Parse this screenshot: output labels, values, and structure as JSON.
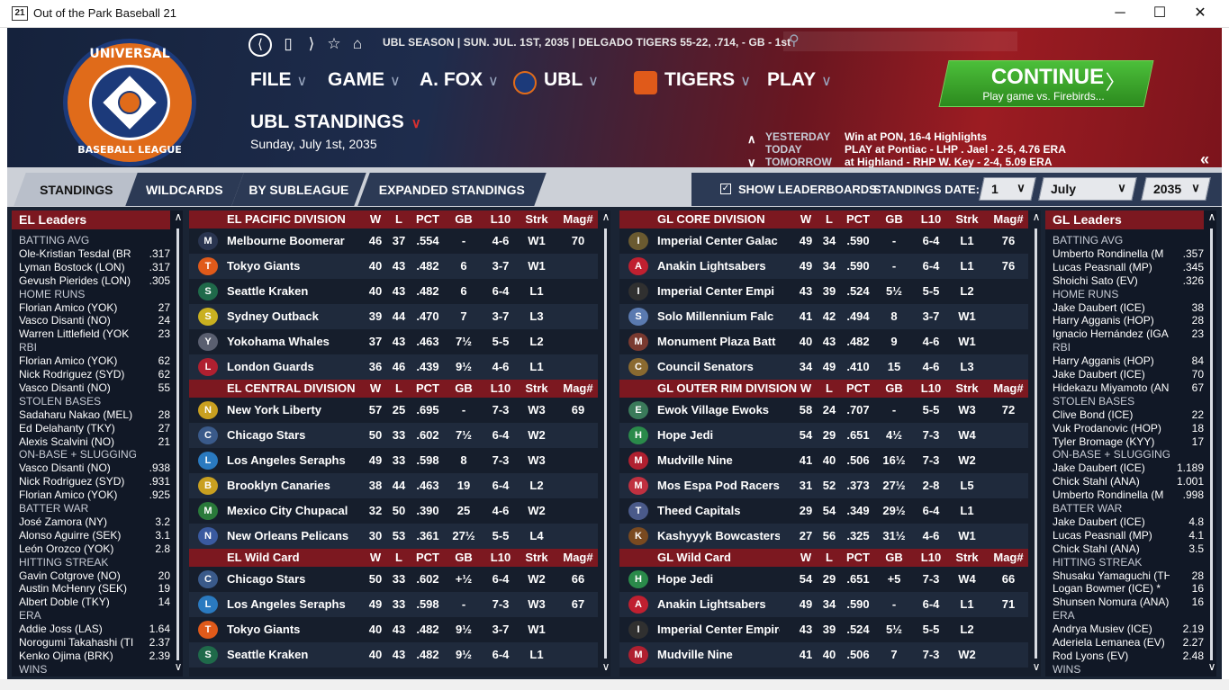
{
  "window": {
    "title": "Out of the Park Baseball 21",
    "icon_text": "21",
    "minimize": "─",
    "maximize": "☐",
    "close": "✕"
  },
  "logo": {
    "top_text": "UNIVERSAL",
    "bottom_text": "BASEBALL LEAGUE"
  },
  "nav": {
    "back": "⟨",
    "bookmark": "▯",
    "forward": "⟩",
    "star": "☆",
    "home": "⌂"
  },
  "status_line": "UBL SEASON | SUN. JUL. 1ST, 2035 | DELGADO TIGERS  55-22, .714, - GB - 1st",
  "search": {
    "icon": "search-icon"
  },
  "menu": [
    {
      "label": "FILE"
    },
    {
      "label": "GAME"
    },
    {
      "label": "A. FOX"
    },
    {
      "label": "UBL"
    },
    {
      "label": "TIGERS"
    },
    {
      "label": "PLAY"
    }
  ],
  "chevron": "∨",
  "page": {
    "title": "UBL STANDINGS",
    "date": "Sunday, July 1st, 2035"
  },
  "continue": {
    "label": "CONTINUE",
    "sub": "Play game vs. Firebirds...",
    "arrow": "〉"
  },
  "schedule": {
    "yesterday": {
      "label": "YESTERDAY",
      "value": "Win at PON, 16-4    Highlights"
    },
    "today": {
      "label": "TODAY",
      "value": "PLAY at Pontiac - LHP . Jael - 2-5, 4.76 ERA"
    },
    "tomorrow": {
      "label": "TOMORROW",
      "value": "at Highland - RHP W. Key - 2-4, 5.09 ERA"
    },
    "up": "∧",
    "down": "∨"
  },
  "collapse": "«",
  "tabs": [
    {
      "label": "STANDINGS"
    },
    {
      "label": "WILDCARDS"
    },
    {
      "label": "BY SUBLEAGUE"
    },
    {
      "label": "EXPANDED STANDINGS"
    }
  ],
  "toolbar": {
    "show_leaderboards": "SHOW LEADERBOARDS",
    "check": "✓",
    "standings_date": "STANDINGS DATE:",
    "day": "1",
    "month": "July",
    "year": "2035",
    "sel_chev": "∨"
  },
  "scroll": {
    "up": "∧",
    "down": "∨"
  },
  "columns": {
    "w": "W",
    "l": "L",
    "pct": "PCT",
    "gb": "GB",
    "l10": "L10",
    "strk": "Strk",
    "mag": "Mag#"
  },
  "el_leaders": {
    "title": "EL Leaders",
    "rows": [
      {
        "n": "BATTING AVG",
        "v": "",
        "cat": true
      },
      {
        "n": "Ole-Kristian Tesdal (BR",
        "v": ".317"
      },
      {
        "n": "Lyman Bostock (LON)",
        "v": ".317"
      },
      {
        "n": "Gevush Pierides (LON)",
        "v": ".305"
      },
      {
        "n": "HOME RUNS",
        "v": "",
        "cat": true
      },
      {
        "n": "Florian Amico (YOK)",
        "v": "27"
      },
      {
        "n": "Vasco Disanti (NO)",
        "v": "24"
      },
      {
        "n": "Warren Littlefield (YOK",
        "v": "23"
      },
      {
        "n": "RBI",
        "v": "",
        "cat": true
      },
      {
        "n": "Florian Amico (YOK)",
        "v": "62"
      },
      {
        "n": "Nick Rodriguez (SYD)",
        "v": "62"
      },
      {
        "n": "Vasco Disanti (NO)",
        "v": "55"
      },
      {
        "n": "STOLEN BASES",
        "v": "",
        "cat": true
      },
      {
        "n": "Sadaharu Nakao (MEL)",
        "v": "28"
      },
      {
        "n": "Ed Delahanty (TKY)",
        "v": "27"
      },
      {
        "n": "Alexis Scalvini (NO)",
        "v": "21"
      },
      {
        "n": "ON-BASE + SLUGGING %",
        "v": "",
        "cat": true
      },
      {
        "n": "Vasco Disanti (NO)",
        "v": ".938"
      },
      {
        "n": "Nick Rodriguez (SYD)",
        "v": ".931"
      },
      {
        "n": "Florian Amico (YOK)",
        "v": ".925"
      },
      {
        "n": "BATTER WAR",
        "v": "",
        "cat": true
      },
      {
        "n": "José Zamora (NY)",
        "v": "3.2"
      },
      {
        "n": "Alonso Aguirre (SEK)",
        "v": "3.1"
      },
      {
        "n": "León Orozco (YOK)",
        "v": "2.8"
      },
      {
        "n": "HITTING STREAK",
        "v": "",
        "cat": true
      },
      {
        "n": "Gavin Cotgrove (NO)",
        "v": "20"
      },
      {
        "n": "Austin McHenry (SEK)",
        "v": "19"
      },
      {
        "n": "Albert Doble (TKY)",
        "v": "14"
      },
      {
        "n": "ERA",
        "v": "",
        "cat": true
      },
      {
        "n": "Addie Joss (LAS)",
        "v": "1.64"
      },
      {
        "n": "Norogumi Takahashi (TI",
        "v": "2.37"
      },
      {
        "n": "Kenko Ojima (BRK)",
        "v": "2.39"
      },
      {
        "n": "WINS",
        "v": "",
        "cat": true
      }
    ]
  },
  "gl_leaders": {
    "title": "GL Leaders",
    "rows": [
      {
        "n": "BATTING AVG",
        "v": "",
        "cat": true
      },
      {
        "n": "Umberto Rondinella (M",
        "v": ".357"
      },
      {
        "n": "Lucas Peasnall (MP)",
        "v": ".345"
      },
      {
        "n": "Shoichi Sato (EV)",
        "v": ".326"
      },
      {
        "n": "HOME RUNS",
        "v": "",
        "cat": true
      },
      {
        "n": "Jake Daubert (ICE)",
        "v": "38"
      },
      {
        "n": "Harry Agganis (HOP)",
        "v": "28"
      },
      {
        "n": "Ignacio Hernández (IGA",
        "v": "23"
      },
      {
        "n": "RBI",
        "v": "",
        "cat": true
      },
      {
        "n": "Harry Agganis (HOP)",
        "v": "84"
      },
      {
        "n": "Jake Daubert (ICE)",
        "v": "70"
      },
      {
        "n": "Hidekazu Miyamoto (AN",
        "v": "67"
      },
      {
        "n": "STOLEN BASES",
        "v": "",
        "cat": true
      },
      {
        "n": "Clive Bond (ICE)",
        "v": "22"
      },
      {
        "n": "Vuk Prodanovic (HOP)",
        "v": "18"
      },
      {
        "n": "Tyler Bromage (KYY)",
        "v": "17"
      },
      {
        "n": "ON-BASE + SLUGGING %",
        "v": "",
        "cat": true
      },
      {
        "n": "Jake Daubert (ICE)",
        "v": "1.189"
      },
      {
        "n": "Chick Stahl (ANA)",
        "v": "1.001"
      },
      {
        "n": "Umberto Rondinella (M",
        "v": ".998"
      },
      {
        "n": "BATTER WAR",
        "v": "",
        "cat": true
      },
      {
        "n": "Jake Daubert (ICE)",
        "v": "4.8"
      },
      {
        "n": "Lucas Peasnall (MP)",
        "v": "4.1"
      },
      {
        "n": "Chick Stahl (ANA)",
        "v": "3.5"
      },
      {
        "n": "HITTING STREAK",
        "v": "",
        "cat": true
      },
      {
        "n": "Shusaku Yamaguchi (TH",
        "v": "28"
      },
      {
        "n": "Logan Bowmer (ICE) *",
        "v": "16"
      },
      {
        "n": "Shunsen Nomura (ANA)",
        "v": "16"
      },
      {
        "n": "ERA",
        "v": "",
        "cat": true
      },
      {
        "n": "Andrya Musiev (ICE)",
        "v": "2.19"
      },
      {
        "n": "Aderiela Lemanea (EV)",
        "v": "2.27"
      },
      {
        "n": "Rod Lyons (EV)",
        "v": "2.48"
      },
      {
        "n": "WINS",
        "v": "",
        "cat": true
      }
    ]
  },
  "el_standings": [
    {
      "title": "EL PACIFIC DIVISION",
      "teams": [
        {
          "name": "Melbourne Boomerar",
          "w": "46",
          "l": "37",
          "pct": ".554",
          "gb": "-",
          "l10": "4-6",
          "strk": "W1",
          "mag": "70",
          "color": "#2a3550",
          "icon": "M"
        },
        {
          "name": "Tokyo Giants",
          "w": "40",
          "l": "43",
          "pct": ".482",
          "gb": "6",
          "l10": "3-7",
          "strk": "W1",
          "mag": "",
          "color": "#e05a1a",
          "icon": "T"
        },
        {
          "name": "Seattle Kraken",
          "w": "40",
          "l": "43",
          "pct": ".482",
          "gb": "6",
          "l10": "6-4",
          "strk": "L1",
          "mag": "",
          "color": "#1f6a4a",
          "icon": "S"
        },
        {
          "name": "Sydney Outback",
          "w": "39",
          "l": "44",
          "pct": ".470",
          "gb": "7",
          "l10": "3-7",
          "strk": "L3",
          "mag": "",
          "color": "#c9b020",
          "icon": "S"
        },
        {
          "name": "Yokohama Whales",
          "w": "37",
          "l": "43",
          "pct": ".463",
          "gb": "7½",
          "l10": "5-5",
          "strk": "L2",
          "mag": "",
          "color": "#5a5f70",
          "icon": "Y"
        },
        {
          "name": "London Guards",
          "w": "36",
          "l": "46",
          "pct": ".439",
          "gb": "9½",
          "l10": "4-6",
          "strk": "L1",
          "mag": "",
          "color": "#b02030",
          "icon": "L"
        }
      ]
    },
    {
      "title": "EL CENTRAL DIVISION",
      "teams": [
        {
          "name": "New York Liberty",
          "w": "57",
          "l": "25",
          "pct": ".695",
          "gb": "-",
          "l10": "7-3",
          "strk": "W3",
          "mag": "69",
          "color": "#c9a020",
          "icon": "N"
        },
        {
          "name": "Chicago Stars",
          "w": "50",
          "l": "33",
          "pct": ".602",
          "gb": "7½",
          "l10": "6-4",
          "strk": "W2",
          "mag": "",
          "color": "#3a5a8a",
          "icon": "C"
        },
        {
          "name": "Los Angeles Seraphs",
          "w": "49",
          "l": "33",
          "pct": ".598",
          "gb": "8",
          "l10": "7-3",
          "strk": "W3",
          "mag": "",
          "color": "#2a7ac0",
          "icon": "L"
        },
        {
          "name": "Brooklyn Canaries",
          "w": "38",
          "l": "44",
          "pct": ".463",
          "gb": "19",
          "l10": "6-4",
          "strk": "L2",
          "mag": "",
          "color": "#c9a020",
          "icon": "B"
        },
        {
          "name": "Mexico City Chupacal",
          "w": "32",
          "l": "50",
          "pct": ".390",
          "gb": "25",
          "l10": "4-6",
          "strk": "W2",
          "mag": "",
          "color": "#2a7a3a",
          "icon": "M"
        },
        {
          "name": "New Orleans Pelicans",
          "w": "30",
          "l": "53",
          "pct": ".361",
          "gb": "27½",
          "l10": "5-5",
          "strk": "L4",
          "mag": "",
          "color": "#3a5aa0",
          "icon": "N"
        }
      ]
    },
    {
      "title": "EL  Wild Card",
      "teams": [
        {
          "name": "Chicago Stars",
          "w": "50",
          "l": "33",
          "pct": ".602",
          "gb": "+½",
          "l10": "6-4",
          "strk": "W2",
          "mag": "66",
          "color": "#3a5a8a",
          "icon": "C"
        },
        {
          "name": "Los Angeles Seraphs",
          "w": "49",
          "l": "33",
          "pct": ".598",
          "gb": "-",
          "l10": "7-3",
          "strk": "W3",
          "mag": "67",
          "color": "#2a7ac0",
          "icon": "L"
        },
        {
          "name": "Tokyo Giants",
          "w": "40",
          "l": "43",
          "pct": ".482",
          "gb": "9½",
          "l10": "3-7",
          "strk": "W1",
          "mag": "",
          "color": "#e05a1a",
          "icon": "T"
        },
        {
          "name": "Seattle Kraken",
          "w": "40",
          "l": "43",
          "pct": ".482",
          "gb": "9½",
          "l10": "6-4",
          "strk": "L1",
          "mag": "",
          "color": "#1f6a4a",
          "icon": "S"
        }
      ]
    }
  ],
  "gl_standings": [
    {
      "title": "GL CORE DIVISION",
      "teams": [
        {
          "name": "Imperial Center Galac",
          "w": "49",
          "l": "34",
          "pct": ".590",
          "gb": "-",
          "l10": "6-4",
          "strk": "L1",
          "mag": "76",
          "color": "#6a5a30",
          "icon": "I"
        },
        {
          "name": "Anakin Lightsabers",
          "w": "49",
          "l": "34",
          "pct": ".590",
          "gb": "-",
          "l10": "6-4",
          "strk": "L1",
          "mag": "76",
          "color": "#c02030",
          "icon": "A"
        },
        {
          "name": "Imperial Center Empi",
          "w": "43",
          "l": "39",
          "pct": ".524",
          "gb": "5½",
          "l10": "5-5",
          "strk": "L2",
          "mag": "",
          "color": "#303030",
          "icon": "I"
        },
        {
          "name": "Solo Millennium Falc",
          "w": "41",
          "l": "42",
          "pct": ".494",
          "gb": "8",
          "l10": "3-7",
          "strk": "W1",
          "mag": "",
          "color": "#5a7ab0",
          "icon": "S"
        },
        {
          "name": "Monument Plaza Batt",
          "w": "40",
          "l": "43",
          "pct": ".482",
          "gb": "9",
          "l10": "4-6",
          "strk": "W1",
          "mag": "",
          "color": "#7a3a30",
          "icon": "M"
        },
        {
          "name": "Council Senators",
          "w": "34",
          "l": "49",
          "pct": ".410",
          "gb": "15",
          "l10": "4-6",
          "strk": "L3",
          "mag": "",
          "color": "#8a6a30",
          "icon": "C"
        }
      ]
    },
    {
      "title": "GL OUTER RIM DIVISION",
      "teams": [
        {
          "name": "Ewok Village Ewoks",
          "w": "58",
          "l": "24",
          "pct": ".707",
          "gb": "-",
          "l10": "5-5",
          "strk": "W3",
          "mag": "72",
          "color": "#3a7a5a",
          "icon": "E"
        },
        {
          "name": "Hope Jedi",
          "w": "54",
          "l": "29",
          "pct": ".651",
          "gb": "4½",
          "l10": "7-3",
          "strk": "W4",
          "mag": "",
          "color": "#2a8a4a",
          "icon": "H"
        },
        {
          "name": "Mudville Nine",
          "w": "41",
          "l": "40",
          "pct": ".506",
          "gb": "16½",
          "l10": "7-3",
          "strk": "W2",
          "mag": "",
          "color": "#b02030",
          "icon": "M"
        },
        {
          "name": "Mos Espa Pod Racers",
          "w": "31",
          "l": "52",
          "pct": ".373",
          "gb": "27½",
          "l10": "2-8",
          "strk": "L5",
          "mag": "",
          "color": "#c03040",
          "icon": "M"
        },
        {
          "name": "Theed Capitals",
          "w": "29",
          "l": "54",
          "pct": ".349",
          "gb": "29½",
          "l10": "6-4",
          "strk": "L1",
          "mag": "",
          "color": "#4a5a8a",
          "icon": "T"
        },
        {
          "name": "Kashyyyk Bowcasters",
          "w": "27",
          "l": "56",
          "pct": ".325",
          "gb": "31½",
          "l10": "4-6",
          "strk": "W1",
          "mag": "",
          "color": "#7a4a20",
          "icon": "K"
        }
      ]
    },
    {
      "title": "GL  Wild Card",
      "teams": [
        {
          "name": "Hope Jedi",
          "w": "54",
          "l": "29",
          "pct": ".651",
          "gb": "+5",
          "l10": "7-3",
          "strk": "W4",
          "mag": "66",
          "color": "#2a8a4a",
          "icon": "H"
        },
        {
          "name": "Anakin Lightsabers",
          "w": "49",
          "l": "34",
          "pct": ".590",
          "gb": "-",
          "l10": "6-4",
          "strk": "L1",
          "mag": "71",
          "color": "#c02030",
          "icon": "A"
        },
        {
          "name": "Imperial Center Empire",
          "w": "43",
          "l": "39",
          "pct": ".524",
          "gb": "5½",
          "l10": "5-5",
          "strk": "L2",
          "mag": "",
          "color": "#303030",
          "icon": "I"
        },
        {
          "name": "Mudville Nine",
          "w": "41",
          "l": "40",
          "pct": ".506",
          "gb": "7",
          "l10": "7-3",
          "strk": "W2",
          "mag": "",
          "color": "#b02030",
          "icon": "M"
        }
      ]
    }
  ]
}
